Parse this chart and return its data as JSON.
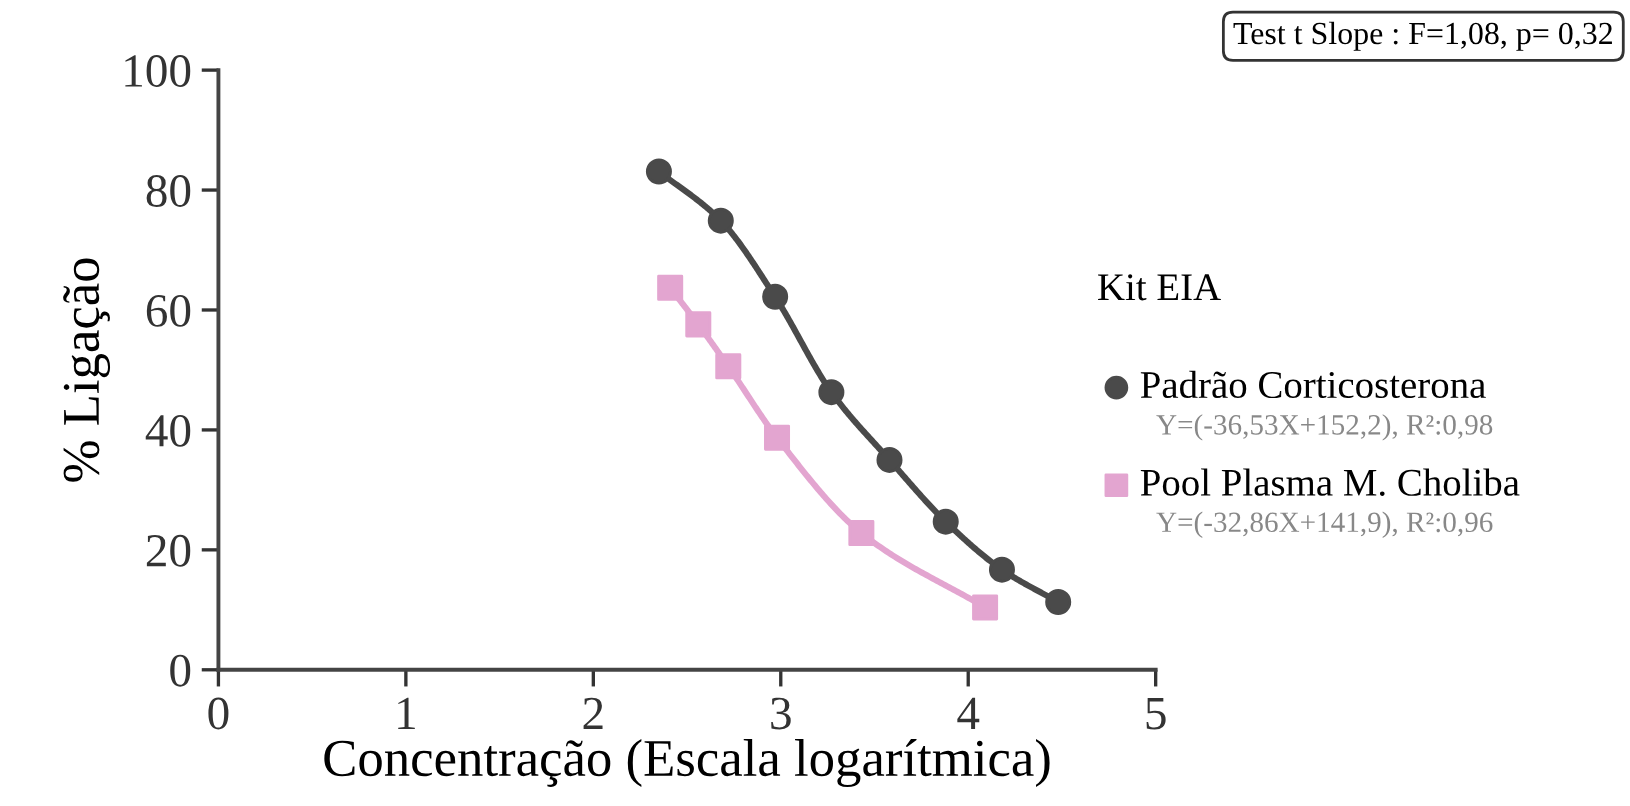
{
  "chart_data": {
    "type": "line",
    "xlabel": "Concentração (Escala logarítmica)",
    "ylabel": "% Ligação",
    "legend_title": "Kit EIA",
    "series": [
      {
        "name": "Padrão Corticosterona",
        "color": "#4a4a4a",
        "marker": "circle",
        "x": [
          2.35,
          2.68,
          2.97,
          3.27,
          3.58,
          3.88,
          4.18,
          4.48
        ],
        "values": [
          83.1,
          74.9,
          62.2,
          46.3,
          35.0,
          24.7,
          16.7,
          11.3
        ]
      },
      {
        "name": "Pool Plasma M. Choliba",
        "color": "#e3a5d0",
        "marker": "square",
        "x": [
          2.41,
          2.56,
          2.72,
          2.98,
          3.43,
          4.09
        ],
        "values": [
          63.7,
          57.6,
          50.6,
          38.7,
          22.8,
          10.4
        ]
      }
    ],
    "annotations": [
      "Test t Slope : F=1,08, p= 0,32",
      "Y=(-36,53X+152,2), R²:0,98",
      "Y=(-32,86X+141,9), R²:0,96"
    ],
    "xlim": [
      0,
      5
    ],
    "xticks": [
      0,
      1,
      2,
      3,
      4,
      5
    ],
    "ylim": [
      0,
      100
    ],
    "yticks": [
      0,
      20,
      40,
      60,
      80,
      100
    ],
    "grid": false,
    "legend": "right",
    "line_style": "solid"
  }
}
